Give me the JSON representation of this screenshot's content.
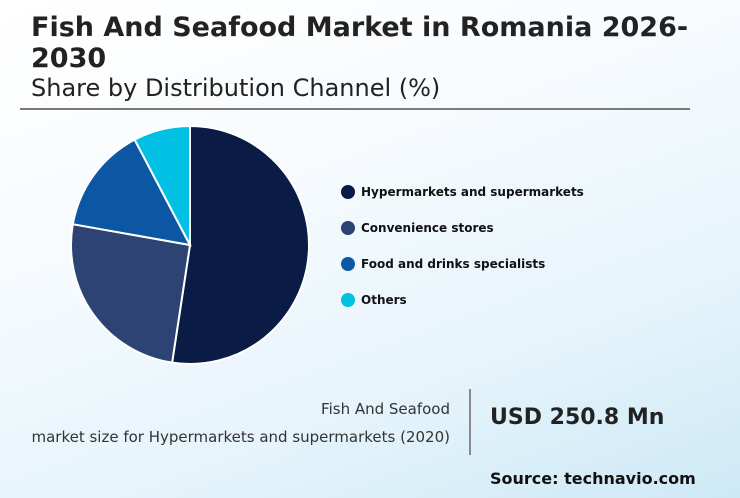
{
  "header": {
    "title": "Fish And Seafood Market in Romania 2026-2030",
    "subtitle": "Share by Distribution Channel (%)"
  },
  "legend": {
    "items": [
      {
        "label": "Hypermarkets and supermarkets",
        "color": "#0a1c45"
      },
      {
        "label": "Convenience stores",
        "color": "#2c4374"
      },
      {
        "label": "Food and drinks specialists",
        "color": "#0b57a4"
      },
      {
        "label": "Others",
        "color": "#00c0e3"
      }
    ]
  },
  "stat": {
    "label_line1": "Fish And Seafood",
    "label_line2": "market size for Hypermarkets and supermarkets (2020)",
    "value": "USD 250.8 Mn"
  },
  "footer": {
    "source": "Source: technavio.com"
  },
  "chart_data": {
    "type": "pie",
    "title": "Fish And Seafood Market in Romania 2026-2030",
    "subtitle": "Share by Distribution Channel (%)",
    "categories": [
      "Hypermarkets and supermarkets",
      "Convenience stores",
      "Food and drinks specialists",
      "Others"
    ],
    "values": [
      52.4,
      25.4,
      14.5,
      7.7
    ],
    "colors": [
      "#0a1c45",
      "#2c4374",
      "#0b57a4",
      "#00c0e3"
    ],
    "start_angle": "12 o'clock",
    "direction": "clockwise",
    "legend_position": "right",
    "data_labels": false
  }
}
